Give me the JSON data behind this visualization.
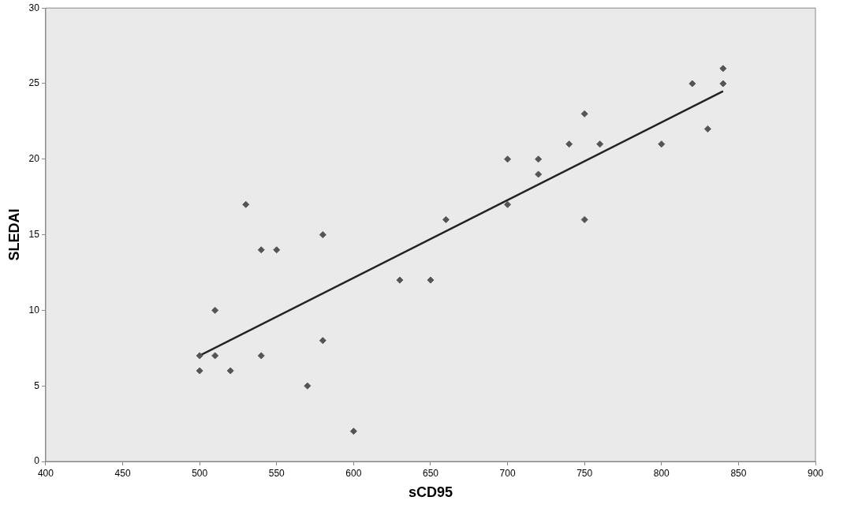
{
  "chart_data": {
    "type": "scatter",
    "xlabel": "sCD95",
    "ylabel": "SLEDAI",
    "xlim": [
      400,
      900
    ],
    "xticks": [
      400,
      450,
      500,
      550,
      600,
      650,
      700,
      750,
      800,
      850,
      900
    ],
    "ylim": [
      0,
      30
    ],
    "yticks": [
      0,
      5,
      10,
      15,
      20,
      25,
      30
    ],
    "grid": false,
    "legend": false,
    "marker": "diamond",
    "series": [
      {
        "type": "scatter",
        "color": "#555555",
        "x": [
          500,
          500,
          510,
          510,
          520,
          530,
          540,
          540,
          550,
          570,
          580,
          580,
          600,
          630,
          650,
          660,
          700,
          700,
          720,
          720,
          740,
          750,
          750,
          760,
          800,
          820,
          830,
          840,
          840
        ],
        "values": [
          7,
          6,
          10,
          7,
          6,
          17,
          14,
          7,
          14,
          5,
          15,
          8,
          2,
          12,
          12,
          16,
          20,
          17,
          20,
          19,
          21,
          23,
          16,
          21,
          21,
          25,
          22,
          26,
          25
        ]
      },
      {
        "type": "line",
        "color": "#222222",
        "x": [
          500,
          840
        ],
        "values": [
          7,
          24.5
        ],
        "marker": "none",
        "line_style": "solid"
      }
    ]
  }
}
